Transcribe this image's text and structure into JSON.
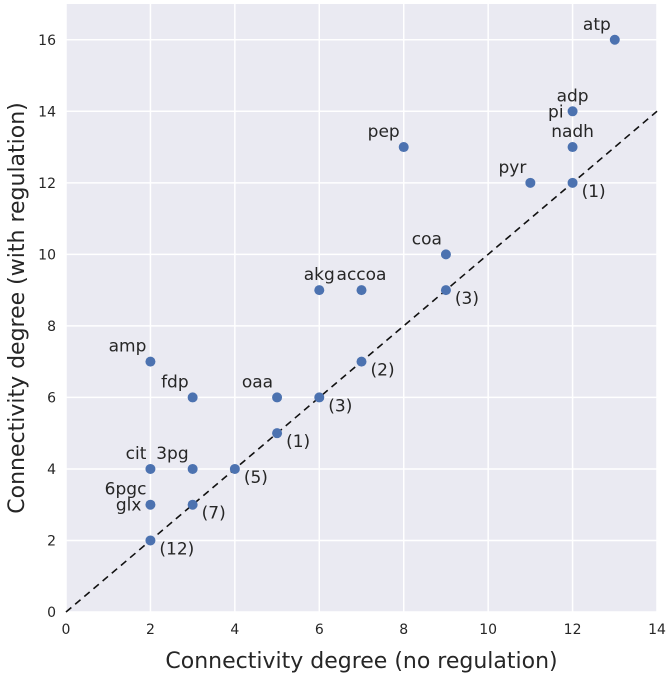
{
  "chart_data": {
    "type": "scatter",
    "title": "",
    "xlabel": "Connectivity degree (no regulation)",
    "ylabel": "Connectivity degree (with regulation)",
    "xlim": [
      0,
      14
    ],
    "ylim": [
      0,
      17
    ],
    "xticks": [
      0,
      2,
      4,
      6,
      8,
      10,
      12,
      14
    ],
    "yticks": [
      0,
      2,
      4,
      6,
      8,
      10,
      12,
      14,
      16
    ],
    "grid": true,
    "background_color": "#eaeaf2",
    "point_color": "#4c72b0",
    "reference_line": {
      "style": "dashed",
      "slope": 1,
      "intercept": 0
    },
    "points": [
      {
        "x": 13,
        "y": 16,
        "label": "atp",
        "label_pos": "above-left"
      },
      {
        "x": 12,
        "y": 14,
        "label": "adp",
        "label_pos": "above"
      },
      {
        "x": 12,
        "y": 14,
        "label": "pi",
        "label_pos": "left"
      },
      {
        "x": 12,
        "y": 13,
        "label": "nadh",
        "label_pos": "above"
      },
      {
        "x": 8,
        "y": 13,
        "label": "pep",
        "label_pos": "above-left"
      },
      {
        "x": 11,
        "y": 12,
        "label": "pyr",
        "label_pos": "above-left"
      },
      {
        "x": 12,
        "y": 12,
        "label": "(1)",
        "label_pos": "right"
      },
      {
        "x": 9,
        "y": 10,
        "label": "coa",
        "label_pos": "above-left"
      },
      {
        "x": 6,
        "y": 9,
        "label": "akg",
        "label_pos": "above"
      },
      {
        "x": 7,
        "y": 9,
        "label": "accoa",
        "label_pos": "above"
      },
      {
        "x": 9,
        "y": 9,
        "label": "(3)",
        "label_pos": "right"
      },
      {
        "x": 2,
        "y": 7,
        "label": "amp",
        "label_pos": "above-left"
      },
      {
        "x": 7,
        "y": 7,
        "label": "(2)",
        "label_pos": "right"
      },
      {
        "x": 3,
        "y": 6,
        "label": "fdp",
        "label_pos": "above-left"
      },
      {
        "x": 5,
        "y": 6,
        "label": "oaa",
        "label_pos": "above-left"
      },
      {
        "x": 6,
        "y": 6,
        "label": "(3)",
        "label_pos": "right"
      },
      {
        "x": 5,
        "y": 5,
        "label": "(1)",
        "label_pos": "right"
      },
      {
        "x": 2,
        "y": 4,
        "label": "cit",
        "label_pos": "above-left"
      },
      {
        "x": 3,
        "y": 4,
        "label": "3pg",
        "label_pos": "above-left"
      },
      {
        "x": 4,
        "y": 4,
        "label": "(5)",
        "label_pos": "right"
      },
      {
        "x": 2,
        "y": 3,
        "label": "6pgc",
        "label_pos": "above-left"
      },
      {
        "x": 2,
        "y": 3,
        "label": "glx",
        "label_pos": "left"
      },
      {
        "x": 3,
        "y": 3,
        "label": "(7)",
        "label_pos": "right"
      },
      {
        "x": 2,
        "y": 2,
        "label": "(12)",
        "label_pos": "right"
      }
    ]
  }
}
